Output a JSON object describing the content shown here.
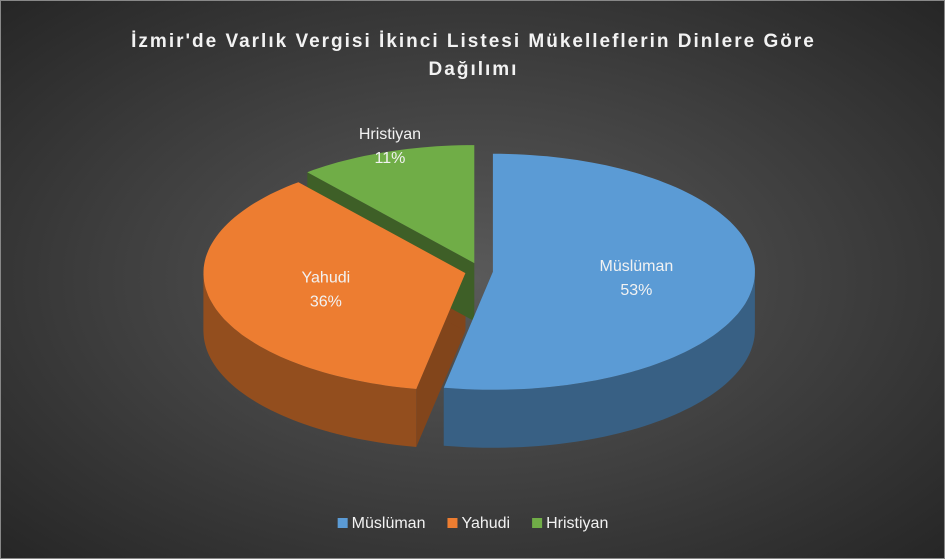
{
  "chart_data": {
    "type": "pie3d",
    "title": "İzmir'de Varlık Vergisi İkinci Listesi Mükelleflerin Dinlere Göre Dağılımı",
    "categories": [
      "Müslüman",
      "Yahudi",
      "Hristiyan"
    ],
    "values": [
      53,
      36,
      11
    ],
    "value_labels": [
      "53%",
      "36%",
      "11%"
    ],
    "colors": [
      "#5b9bd5",
      "#ed7d31",
      "#70ad47"
    ],
    "legend": "bottom"
  }
}
